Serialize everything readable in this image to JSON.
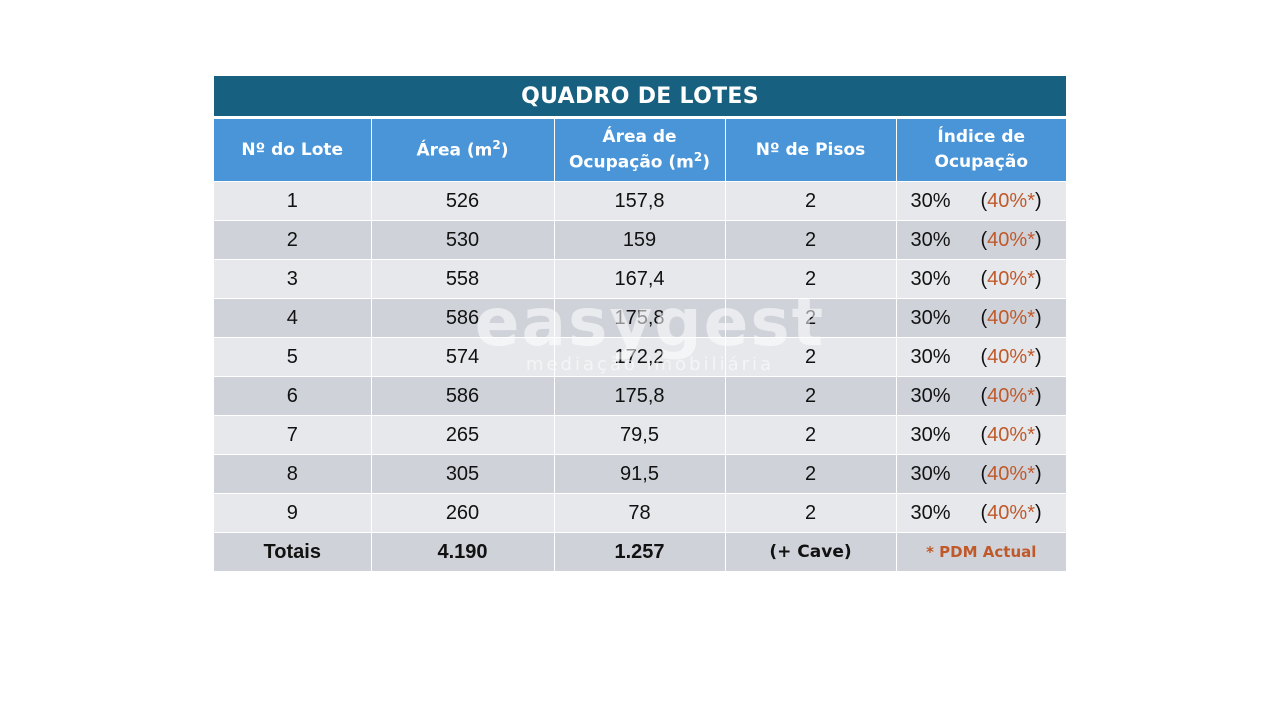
{
  "title": "QUADRO DE LOTES",
  "headers": {
    "lote": "Nº do Lote",
    "area": "Área (m",
    "area_sup": "2",
    "area_close": ")",
    "ocupacao_line1": "Área de",
    "ocupacao_line2": "Ocupação (m",
    "ocupacao_sup": "2",
    "ocupacao_close": ")",
    "pisos": "Nº de Pisos",
    "indice_line1": "Índice de",
    "indice_line2": "Ocupação"
  },
  "rows": [
    {
      "lote": "1",
      "area": "526",
      "ocupacao": "157,8",
      "pisos": "2",
      "indice": "30%",
      "indice_alt": "40%*"
    },
    {
      "lote": "2",
      "area": "530",
      "ocupacao": "159",
      "pisos": "2",
      "indice": "30%",
      "indice_alt": "40%*"
    },
    {
      "lote": "3",
      "area": "558",
      "ocupacao": "167,4",
      "pisos": "2",
      "indice": "30%",
      "indice_alt": "40%*"
    },
    {
      "lote": "4",
      "area": "586",
      "ocupacao": "175,8",
      "pisos": "2",
      "indice": "30%",
      "indice_alt": "40%*"
    },
    {
      "lote": "5",
      "area": "574",
      "ocupacao": "172,2",
      "pisos": "2",
      "indice": "30%",
      "indice_alt": "40%*"
    },
    {
      "lote": "6",
      "area": "586",
      "ocupacao": "175,8",
      "pisos": "2",
      "indice": "30%",
      "indice_alt": "40%*"
    },
    {
      "lote": "7",
      "area": "265",
      "ocupacao": "79,5",
      "pisos": "2",
      "indice": "30%",
      "indice_alt": "40%*"
    },
    {
      "lote": "8",
      "area": "305",
      "ocupacao": "91,5",
      "pisos": "2",
      "indice": "30%",
      "indice_alt": "40%*"
    },
    {
      "lote": "9",
      "area": "260",
      "ocupacao": "78",
      "pisos": "2",
      "indice": "30%",
      "indice_alt": "40%*"
    }
  ],
  "totals": {
    "label": "Totais",
    "area": "4.190",
    "ocupacao": "1.257",
    "pisos": "(+ Cave)",
    "note": "* PDM Actual"
  },
  "watermark": {
    "main": "easygest",
    "sub": "mediação imobiliária"
  },
  "colors": {
    "title_bg": "#17607f",
    "header_bg": "#4a95d8",
    "row_light": "#e6e8eb",
    "row_dark": "#cfd3d9",
    "accent": "#c0592a"
  }
}
